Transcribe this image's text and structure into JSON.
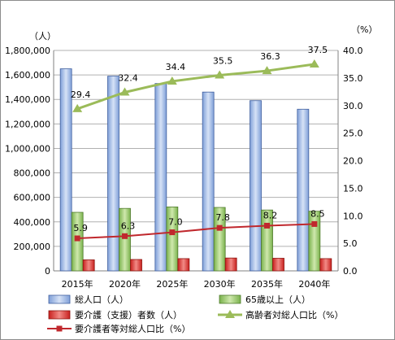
{
  "chart_data": {
    "type": "bar",
    "title": "",
    "categories": [
      "2015年",
      "2020年",
      "2025年",
      "2030年",
      "2035年",
      "2040年"
    ],
    "left_axis": {
      "unit": "（人）",
      "ylim": [
        0,
        1800000
      ],
      "ticks": [
        "0",
        "200,000",
        "400,000",
        "600,000",
        "800,000",
        "1,000,000",
        "1,200,000",
        "1,400,000",
        "1,600,000",
        "1,800,000"
      ]
    },
    "right_axis": {
      "unit": "（%）",
      "ylim": [
        0,
        40
      ],
      "ticks": [
        "0.0",
        "5.0",
        "10.0",
        "15.0",
        "20.0",
        "25.0",
        "30.0",
        "35.0",
        "40.0"
      ]
    },
    "grid": true,
    "legend_position": "bottom",
    "series": [
      {
        "name": "総人口（人）",
        "kind": "bar",
        "axis": "left",
        "color": "#7f9fd8",
        "values": [
          1650000,
          1590000,
          1530000,
          1460000,
          1390000,
          1320000
        ]
      },
      {
        "name": "65歳以上（人）",
        "kind": "bar",
        "axis": "left",
        "color": "#8cc060",
        "values": [
          478000,
          510000,
          522000,
          518000,
          497000,
          487000
        ]
      },
      {
        "name": "要介護（支援）者数（人）",
        "kind": "bar",
        "axis": "left",
        "color": "#e0403a",
        "values": [
          90000,
          93000,
          100000,
          105000,
          103000,
          100000
        ]
      },
      {
        "name": "高齢者対総人口比（%）",
        "kind": "line",
        "axis": "right",
        "color": "#9bbb59",
        "values": [
          29.4,
          32.4,
          34.4,
          35.5,
          36.3,
          37.5
        ],
        "labels": [
          "29.4",
          "32.4",
          "34.4",
          "35.5",
          "36.3",
          "37.5"
        ]
      },
      {
        "name": "要介護者等対総人口比（%）",
        "kind": "line",
        "axis": "right",
        "color": "#c0282d",
        "values": [
          5.9,
          6.3,
          7.0,
          7.8,
          8.2,
          8.5
        ],
        "labels": [
          "5.9",
          "6.3",
          "7.0",
          "7.8",
          "8.2",
          "8.5"
        ]
      }
    ]
  }
}
